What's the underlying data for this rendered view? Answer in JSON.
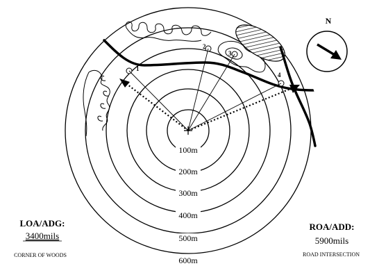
{
  "compass": {
    "north_label": "N"
  },
  "range_rings": [
    "100m",
    "200m",
    "300m",
    "400m",
    "500m",
    "600m"
  ],
  "points": [
    "1",
    "2",
    "3",
    "4"
  ],
  "left_reference": {
    "title": "LOA/ADG:",
    "value": "3400mils",
    "description": "CORNER OF WOODS"
  },
  "right_reference": {
    "title": "ROA/ADD:",
    "value": "5900mils",
    "description": "ROAD INTERSECTION"
  }
}
